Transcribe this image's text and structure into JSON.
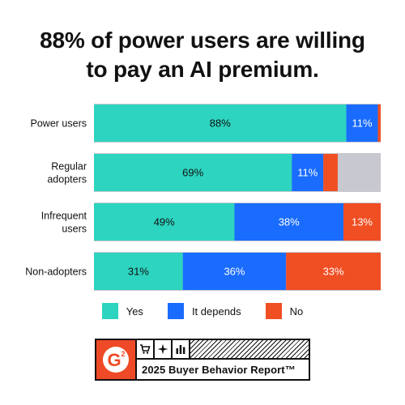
{
  "title_lines": [
    "88% of power users are willing",
    "to pay an AI premium."
  ],
  "colors": {
    "yes": "#2dd4bf",
    "it_depends": "#1a6cff",
    "no": "#f04e23",
    "track": "#c8c8d0"
  },
  "chart_data": {
    "type": "bar",
    "orientation": "horizontal",
    "stacked": true,
    "categories": [
      [
        "Power users"
      ],
      [
        "Regular",
        "adopters"
      ],
      [
        "Infrequent",
        "users"
      ],
      [
        "Non-adopters"
      ]
    ],
    "series": [
      {
        "name": "Yes",
        "color_key": "yes",
        "values": [
          88,
          69,
          49,
          31
        ],
        "labels": [
          "88%",
          "69%",
          "49%",
          "31%"
        ]
      },
      {
        "name": "It depends",
        "color_key": "it_depends",
        "values": [
          11,
          11,
          38,
          36
        ],
        "labels": [
          "11%",
          "11%",
          "38%",
          "36%"
        ]
      },
      {
        "name": "No",
        "color_key": "no",
        "values": [
          2,
          5,
          13,
          33
        ],
        "labels": [
          "",
          "",
          "13%",
          "33%"
        ]
      }
    ],
    "xlim": [
      0,
      100
    ],
    "legend_position": "bottom"
  },
  "legend": [
    {
      "label": "Yes",
      "color_key": "yes"
    },
    {
      "label": "It depends",
      "color_key": "it_depends"
    },
    {
      "label": "No",
      "color_key": "no"
    }
  ],
  "badge": {
    "logo_text": "G",
    "logo_sup": "2",
    "icons": [
      "cart-icon",
      "sparkle-icon",
      "bar-chart-icon"
    ],
    "icon_glyphs": [
      "🛒",
      "✦",
      "▮"
    ],
    "report_title": "2025 Buyer Behavior Report™"
  }
}
